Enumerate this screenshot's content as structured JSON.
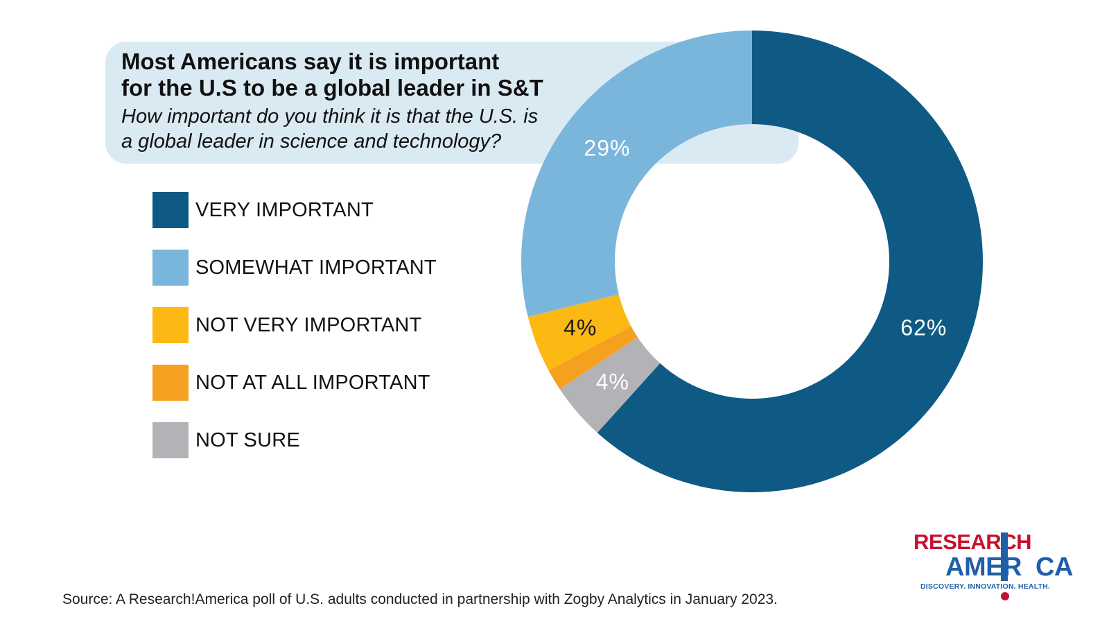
{
  "chart_data": {
    "type": "pie",
    "title": "Most Americans say it is important for the U.S to be a global leader in S&T",
    "title_lines": [
      "Most Americans say it is important",
      "for the U.S to be a global leader in S&T"
    ],
    "subtitle": "How important do you think it is that the U.S. is a global leader in science and technology?",
    "subtitle_lines": [
      "How important do you think it is that the U.S. is",
      "a global leader in science and technology?"
    ],
    "donut": true,
    "legend_position": "left",
    "slices": [
      {
        "label": "VERY IMPORTANT",
        "value": 62,
        "color": "#0e5a84",
        "data_label": "62%",
        "label_color": "#ffffff"
      },
      {
        "label": "NOT SURE",
        "value": 4,
        "color": "#b3b3b7",
        "data_label": "4%",
        "label_color": "#ffffff"
      },
      {
        "label": "NOT AT ALL IMPORTANT",
        "value": 1.5,
        "color": "#f5a01f",
        "data_label": "",
        "label_color": "#ffffff"
      },
      {
        "label": "NOT VERY IMPORTANT",
        "value": 4,
        "color": "#fdb913",
        "data_label": "4%",
        "label_color": "#1a1a1a"
      },
      {
        "label": "SOMEWHAT IMPORTANT",
        "value": 29,
        "color": "#7ab5dc",
        "data_label": "29%",
        "label_color": "#ffffff"
      }
    ],
    "legend": [
      {
        "label": "VERY IMPORTANT",
        "color": "#0e5a84"
      },
      {
        "label": "SOMEWHAT IMPORTANT",
        "color": "#7ab5dc"
      },
      {
        "label": "NOT VERY IMPORTANT",
        "color": "#fdb913"
      },
      {
        "label": "NOT AT ALL IMPORTANT",
        "color": "#f5a01f"
      },
      {
        "label": "NOT SURE",
        "color": "#b3b3b7"
      }
    ]
  },
  "source": "Source:  A Research!America poll of U.S. adults conducted in partnership with Zogby Analytics in January 2023.",
  "logo": {
    "line1": "RESEARCH",
    "line2": "AMER CA",
    "tagline": "DISCOVERY. INNOVATION. HEALTH.",
    "colors": {
      "red": "#c8102e",
      "blue": "#1f5fa8"
    }
  }
}
